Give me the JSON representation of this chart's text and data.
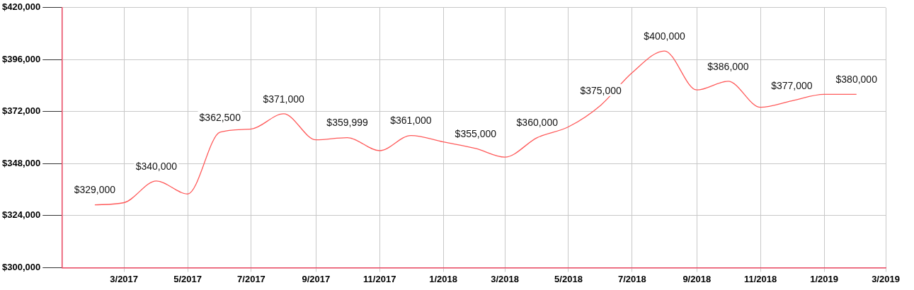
{
  "chart_data": {
    "type": "line",
    "x": [
      "2017-02",
      "2017-03",
      "2017-04",
      "2017-05",
      "2017-06",
      "2017-07",
      "2017-08",
      "2017-09",
      "2017-10",
      "2017-11",
      "2017-12",
      "2018-01",
      "2018-02",
      "2018-03",
      "2018-04",
      "2018-05",
      "2018-06",
      "2018-07",
      "2018-08",
      "2018-09",
      "2018-10",
      "2018-11",
      "2018-12",
      "2019-01",
      "2019-02"
    ],
    "series": [
      {
        "color": "#ff5a5a",
        "values": [
          329000,
          330000,
          340000,
          334000,
          362500,
          364000,
          371000,
          359000,
          359999,
          354000,
          361000,
          358000,
          355000,
          351000,
          360000,
          365000,
          375000,
          390000,
          400000,
          382000,
          386000,
          374000,
          377000,
          380000,
          380000
        ],
        "value_labels": [
          "$329,000",
          null,
          "$340,000",
          null,
          "$362,500",
          null,
          "$371,000",
          null,
          "$359,999",
          null,
          "$361,000",
          null,
          "$355,000",
          null,
          "$360,000",
          null,
          "$375,000",
          null,
          "$400,000",
          null,
          "$386,000",
          null,
          "$377,000",
          null,
          "$380,000"
        ]
      }
    ],
    "xlim": [
      "2017-01",
      "2019-03"
    ],
    "xticks": [
      {
        "value": "2017-03",
        "label": "3/2017"
      },
      {
        "value": "2017-05",
        "label": "5/2017"
      },
      {
        "value": "2017-07",
        "label": "7/2017"
      },
      {
        "value": "2017-09",
        "label": "9/2017"
      },
      {
        "value": "2017-11",
        "label": "11/2017"
      },
      {
        "value": "2018-01",
        "label": "1/2018"
      },
      {
        "value": "2018-03",
        "label": "3/2018"
      },
      {
        "value": "2018-05",
        "label": "5/2018"
      },
      {
        "value": "2018-07",
        "label": "7/2018"
      },
      {
        "value": "2018-09",
        "label": "9/2018"
      },
      {
        "value": "2018-11",
        "label": "11/2018"
      },
      {
        "value": "2019-01",
        "label": "1/2019"
      },
      {
        "value": "2019-03",
        "label": "3/2019"
      }
    ],
    "ylim": [
      300000,
      420000
    ],
    "yticks": [
      {
        "value": 300000,
        "label": "$300,000"
      },
      {
        "value": 324000,
        "label": "$324,000"
      },
      {
        "value": 348000,
        "label": "$348,000"
      },
      {
        "value": 372000,
        "label": "$372,000"
      },
      {
        "value": 396000,
        "label": "$396,000"
      },
      {
        "value": 420000,
        "label": "$420,000"
      }
    ],
    "grid": true,
    "legend": false,
    "marker": "none",
    "line_style": "solid"
  }
}
